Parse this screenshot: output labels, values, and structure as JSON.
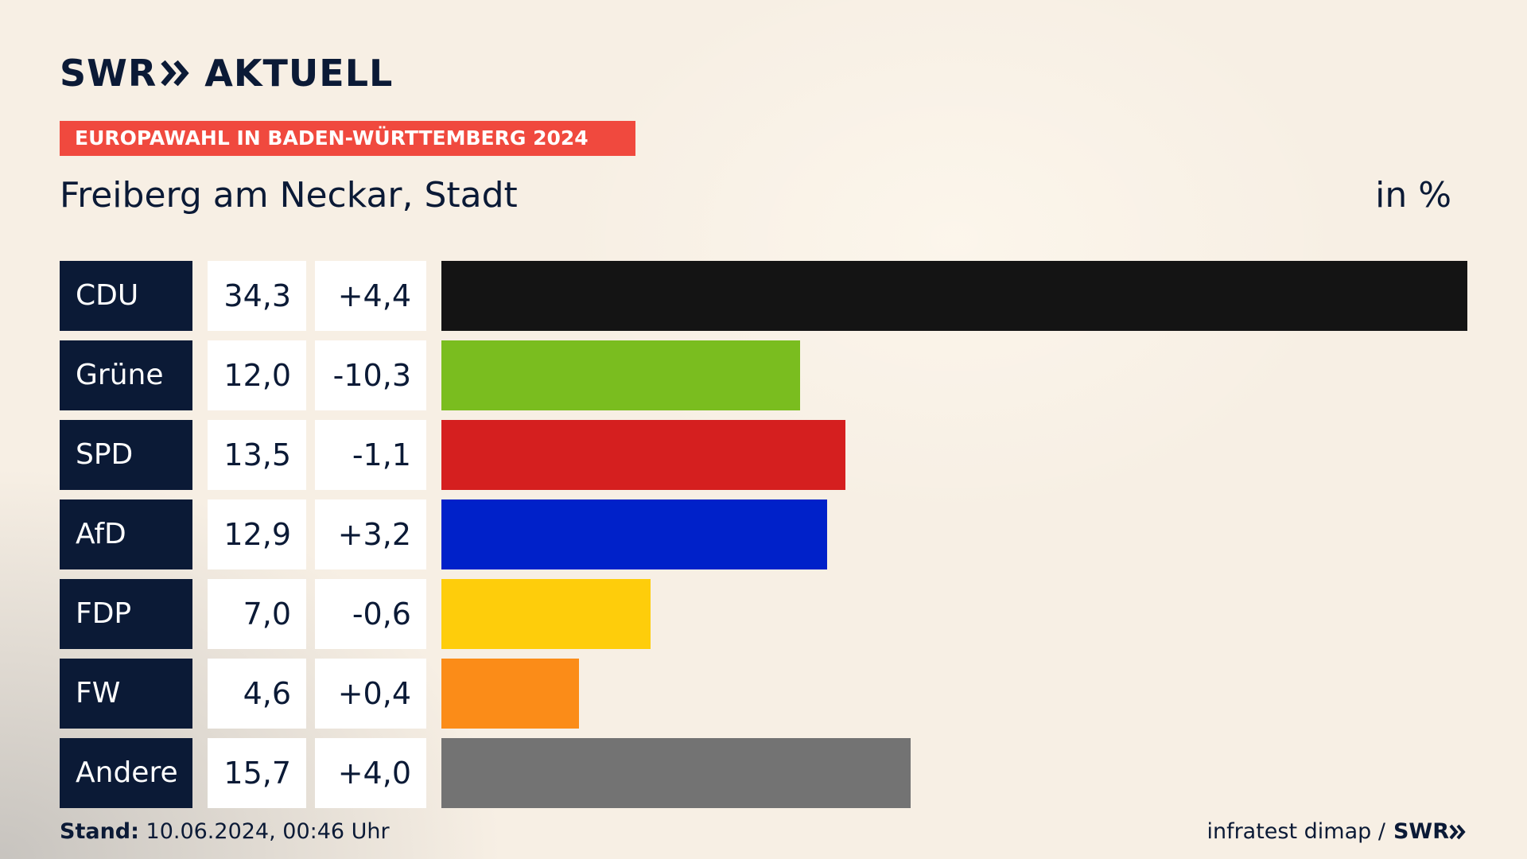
{
  "header": {
    "logo_swr": "SWR",
    "logo_aktuell": "AKTUELL",
    "tag": "EUROPAWAHL IN BADEN-WÜRTTEMBERG 2024",
    "subtitle": "Freiberg am Neckar, Stadt",
    "unit": "in %"
  },
  "footer": {
    "stand_label": "Stand:",
    "stand_value": "10.06.2024, 00:46 Uhr",
    "source": "infratest dimap /",
    "source_logo": "SWR"
  },
  "colors": {
    "navy": "#0b1a36",
    "tag_red": "#f0493e"
  },
  "chart_data": {
    "type": "bar",
    "orientation": "horizontal",
    "categories": [
      "CDU",
      "Grüne",
      "SPD",
      "AfD",
      "FDP",
      "FW",
      "Andere"
    ],
    "values": [
      34.3,
      12.0,
      13.5,
      12.9,
      7.0,
      4.6,
      15.7
    ],
    "value_labels": [
      "34,3",
      "12,0",
      "13,5",
      "12,9",
      "7,0",
      "4,6",
      "15,7"
    ],
    "diff_labels": [
      "+4,4",
      "-10,3",
      "-1,1",
      "+3,2",
      "-0,6",
      "+0,4",
      "+4,0"
    ],
    "diff_values": [
      4.4,
      -10.3,
      -1.1,
      3.2,
      -0.6,
      0.4,
      4.0
    ],
    "bar_colors": [
      "#141414",
      "#7abd1f",
      "#d51f1f",
      "#0021c9",
      "#fecd0b",
      "#fb8c18",
      "#737373"
    ],
    "xlim": [
      0,
      34.3
    ],
    "grid": false,
    "legend": "none"
  }
}
